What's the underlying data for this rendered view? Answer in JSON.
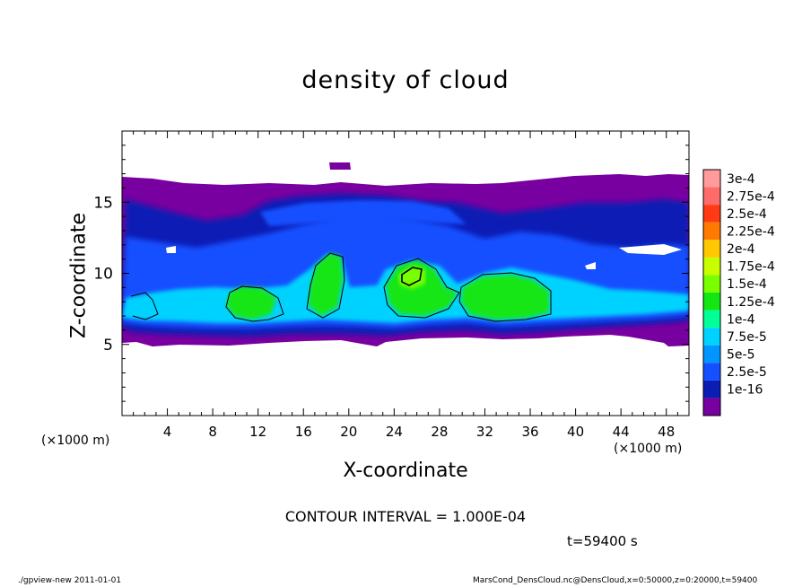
{
  "chart_data": {
    "type": "heatmap",
    "title": "density of cloud",
    "xlabel": "X-coordinate",
    "ylabel": "Z-coordinate",
    "x_unit_label": "(×1000 m)",
    "xlim": [
      0,
      50
    ],
    "ylim": [
      0,
      20
    ],
    "x_ticks": [
      4,
      8,
      12,
      16,
      20,
      24,
      28,
      32,
      36,
      40,
      44,
      48
    ],
    "y_ticks": [
      5,
      10,
      15
    ],
    "legend_position": "right",
    "legend": {
      "labels": [
        "3e-4",
        "2.75e-4",
        "2.5e-4",
        "2.25e-4",
        "2e-4",
        "1.75e-4",
        "1.5e-4",
        "1.25e-4",
        "1e-4",
        "7.5e-5",
        "5e-5",
        "2.5e-5",
        "1e-16"
      ],
      "colors": [
        "#ff9b9b",
        "#ff6a6a",
        "#ff3a14",
        "#ff7a00",
        "#ffc800",
        "#c8ff00",
        "#78ff00",
        "#14e614",
        "#00ff96",
        "#00d2ff",
        "#0096ff",
        "#1450ff",
        "#0a1eb4",
        "#7800a0"
      ]
    },
    "contour_interval_text": "CONTOUR INTERVAL = 1.000E-04",
    "time_text": "t=59400 s",
    "cloud_layers": [
      {
        "level": "1e-16",
        "x_range": [
          0,
          50
        ],
        "z_range": [
          5,
          16.7
        ]
      },
      {
        "level": "2.5e-5",
        "x_range": [
          0,
          50
        ],
        "z_range": [
          5.5,
          15.5
        ]
      },
      {
        "level": "7.5e-5",
        "x_range": [
          0,
          50
        ],
        "z_range": [
          6,
          11
        ]
      },
      {
        "level": "1e-4",
        "x_range": [
          23,
          28
        ],
        "z_range": [
          7,
          10.7
        ]
      }
    ]
  },
  "footer": {
    "left": "./gpview-new   2011-01-01",
    "right": "MarsCond_DensCloud.nc@DensCloud,x=0:50000,z=0:20000,t=59400"
  }
}
